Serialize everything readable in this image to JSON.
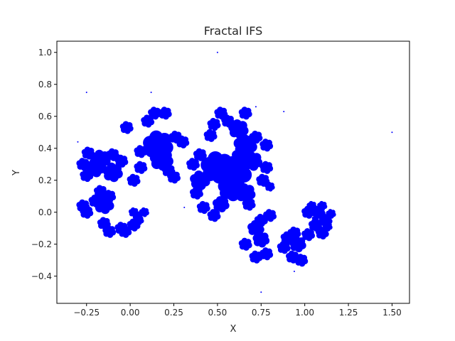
{
  "chart_data": {
    "type": "scatter",
    "title": "Fractal IFS",
    "xlabel": "X",
    "ylabel": "Y",
    "xlim": [
      -0.42,
      1.6
    ],
    "ylim": [
      -0.57,
      1.07
    ],
    "xticks": [
      -0.25,
      0.0,
      0.25,
      0.5,
      0.75,
      1.0,
      1.25,
      1.5
    ],
    "xtick_labels": [
      "−0.25",
      "0.00",
      "0.25",
      "0.50",
      "0.75",
      "1.00",
      "1.25",
      "1.50"
    ],
    "yticks": [
      -0.4,
      -0.2,
      0.0,
      0.2,
      0.4,
      0.6,
      0.8,
      1.0
    ],
    "ytick_labels": [
      "−0.4",
      "−0.2",
      "0.0",
      "0.2",
      "0.4",
      "0.6",
      "0.8",
      "1.0"
    ],
    "grid": false,
    "legend": "none",
    "point_color": "#0000ff",
    "blobs": [
      [
        0.14,
        0.62,
        0.04
      ],
      [
        0.1,
        0.57,
        0.04
      ],
      [
        0.2,
        0.62,
        0.04
      ],
      [
        0.26,
        0.47,
        0.04
      ],
      [
        0.3,
        0.44,
        0.04
      ],
      [
        0.06,
        0.38,
        0.04
      ],
      [
        -0.02,
        0.53,
        0.04
      ],
      [
        0.18,
        0.33,
        0.07
      ],
      [
        0.22,
        0.26,
        0.04
      ],
      [
        0.25,
        0.22,
        0.04
      ],
      [
        0.06,
        0.28,
        0.04
      ],
      [
        0.16,
        0.42,
        0.09
      ],
      [
        -0.1,
        0.36,
        0.04
      ],
      [
        -0.05,
        0.32,
        0.04
      ],
      [
        0.02,
        0.2,
        0.04
      ],
      [
        -0.1,
        0.25,
        0.06
      ],
      [
        -0.17,
        0.33,
        0.06
      ],
      [
        -0.24,
        0.37,
        0.04
      ],
      [
        -0.27,
        0.3,
        0.04
      ],
      [
        -0.25,
        0.23,
        0.04
      ],
      [
        -0.2,
        0.28,
        0.06
      ],
      [
        -0.17,
        0.13,
        0.04
      ],
      [
        -0.12,
        0.1,
        0.04
      ],
      [
        -0.2,
        0.07,
        0.04
      ],
      [
        -0.27,
        0.04,
        0.04
      ],
      [
        -0.25,
        0.0,
        0.04
      ],
      [
        -0.15,
        0.05,
        0.06
      ],
      [
        -0.15,
        -0.07,
        0.04
      ],
      [
        -0.12,
        -0.12,
        0.04
      ],
      [
        -0.05,
        -0.1,
        0.04
      ],
      [
        -0.03,
        -0.12,
        0.04
      ],
      [
        0.02,
        -0.08,
        0.04
      ],
      [
        0.04,
        -0.02,
        0.03
      ],
      [
        0.08,
        0.0,
        0.03
      ],
      [
        0.02,
        0.0,
        0.03
      ],
      [
        0.05,
        -0.05,
        0.03
      ],
      [
        0.52,
        0.62,
        0.04
      ],
      [
        0.56,
        0.57,
        0.04
      ],
      [
        0.66,
        0.62,
        0.04
      ],
      [
        0.48,
        0.55,
        0.04
      ],
      [
        0.46,
        0.48,
        0.04
      ],
      [
        0.62,
        0.52,
        0.06
      ],
      [
        0.72,
        0.47,
        0.04
      ],
      [
        0.78,
        0.42,
        0.04
      ],
      [
        0.66,
        0.42,
        0.07
      ],
      [
        0.4,
        0.36,
        0.04
      ],
      [
        0.36,
        0.3,
        0.04
      ],
      [
        0.4,
        0.2,
        0.06
      ],
      [
        0.38,
        0.12,
        0.04
      ],
      [
        0.42,
        0.03,
        0.04
      ],
      [
        0.48,
        -0.02,
        0.04
      ],
      [
        0.52,
        0.05,
        0.05
      ],
      [
        0.5,
        0.28,
        0.1
      ],
      [
        0.6,
        0.25,
        0.1
      ],
      [
        0.58,
        0.15,
        0.08
      ],
      [
        0.66,
        0.12,
        0.06
      ],
      [
        0.68,
        0.05,
        0.04
      ],
      [
        0.76,
        0.2,
        0.04
      ],
      [
        0.78,
        0.28,
        0.04
      ],
      [
        0.8,
        0.16,
        0.03
      ],
      [
        0.7,
        0.32,
        0.06
      ],
      [
        0.64,
        0.35,
        0.06
      ],
      [
        0.75,
        -0.05,
        0.04
      ],
      [
        0.8,
        -0.02,
        0.04
      ],
      [
        0.72,
        -0.1,
        0.05
      ],
      [
        0.66,
        -0.2,
        0.04
      ],
      [
        0.72,
        -0.28,
        0.04
      ],
      [
        0.78,
        -0.26,
        0.04
      ],
      [
        0.75,
        -0.17,
        0.05
      ],
      [
        0.9,
        -0.16,
        0.04
      ],
      [
        0.94,
        -0.13,
        0.04
      ],
      [
        0.88,
        -0.22,
        0.04
      ],
      [
        0.93,
        -0.28,
        0.04
      ],
      [
        0.98,
        -0.3,
        0.04
      ],
      [
        0.96,
        -0.2,
        0.05
      ],
      [
        1.02,
        -0.14,
        0.04
      ],
      [
        1.06,
        -0.08,
        0.04
      ],
      [
        1.1,
        -0.13,
        0.04
      ],
      [
        1.12,
        -0.05,
        0.04
      ],
      [
        1.08,
        0.0,
        0.04
      ],
      [
        1.02,
        0.0,
        0.04
      ],
      [
        1.04,
        0.04,
        0.03
      ],
      [
        1.1,
        0.04,
        0.03
      ],
      [
        1.15,
        -0.01,
        0.03
      ],
      [
        1.13,
        -0.09,
        0.03
      ],
      [
        1.06,
        -0.04,
        0.02
      ],
      [
        1.05,
        0.0,
        0.02
      ]
    ],
    "outliers": [
      [
        0.5,
        1.0
      ],
      [
        -0.25,
        0.75
      ],
      [
        0.12,
        0.75
      ],
      [
        -0.3,
        0.44
      ],
      [
        0.31,
        0.03
      ],
      [
        0.72,
        0.66
      ],
      [
        0.88,
        0.63
      ],
      [
        1.5,
        0.5
      ],
      [
        0.94,
        -0.37
      ],
      [
        0.75,
        -0.5
      ],
      [
        0.8,
        0.15
      ]
    ]
  }
}
